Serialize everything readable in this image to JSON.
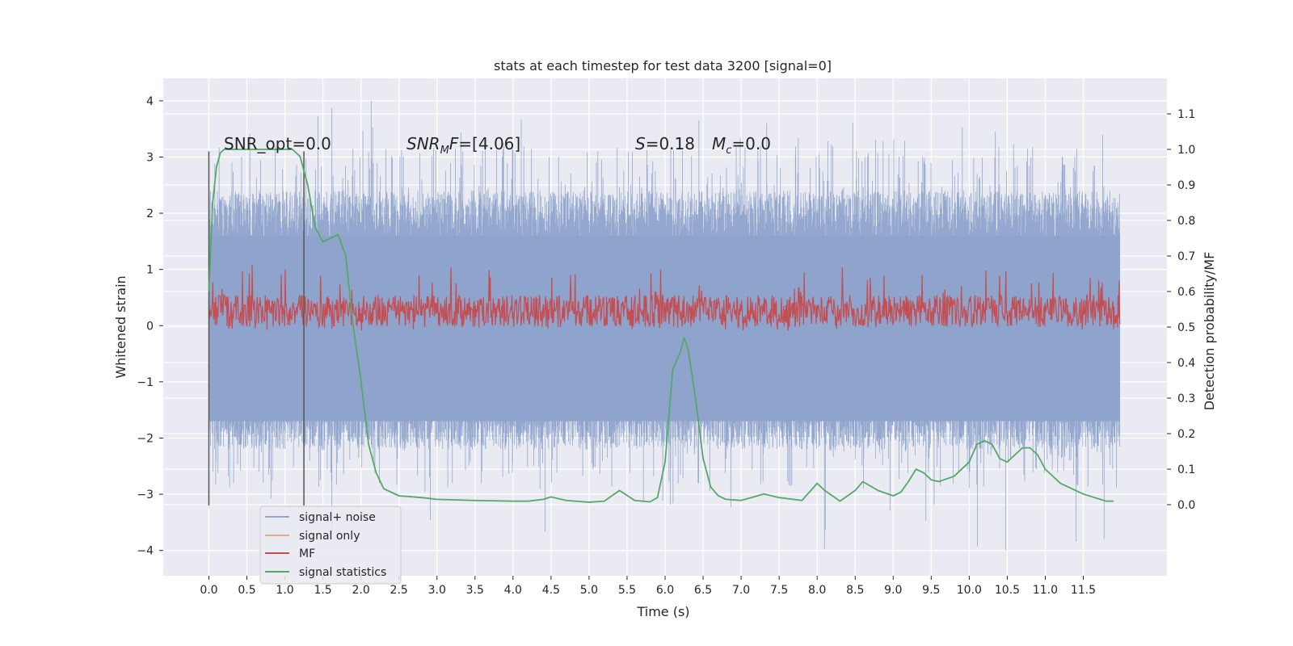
{
  "chart_data": {
    "type": "line",
    "title": "stats at each timestep for test data 3200 [signal=0]",
    "xlabel": "Time (s)",
    "ylabel": "Whitened strain",
    "y2label": "Detection probability/MF",
    "xlim": [
      -0.6,
      12.6
    ],
    "ylim": [
      -4.45,
      4.4
    ],
    "y2lim": [
      -0.2,
      1.2
    ],
    "x_ticks": [
      "0.0",
      "0.5",
      "1.0",
      "1.5",
      "2.0",
      "2.5",
      "3.0",
      "3.5",
      "4.0",
      "4.5",
      "5.0",
      "5.5",
      "6.0",
      "6.5",
      "7.0",
      "7.5",
      "8.0",
      "8.5",
      "9.0",
      "9.5",
      "10.0",
      "10.5",
      "11.0",
      "11.5"
    ],
    "x_tick_values": [
      0,
      0.5,
      1,
      1.5,
      2,
      2.5,
      3,
      3.5,
      4,
      4.5,
      5,
      5.5,
      6,
      6.5,
      7,
      7.5,
      8,
      8.5,
      9,
      9.5,
      10,
      10.5,
      11,
      11.5
    ],
    "y_ticks": [
      "−4",
      "−3",
      "−2",
      "−1",
      "0",
      "1",
      "2",
      "3",
      "4"
    ],
    "y_tick_values": [
      -4,
      -3,
      -2,
      -1,
      0,
      1,
      2,
      3,
      4
    ],
    "y2_ticks": [
      "0.0",
      "0.1",
      "0.2",
      "0.3",
      "0.4",
      "0.5",
      "0.6",
      "0.7",
      "0.8",
      "0.9",
      "1.0",
      "1.1"
    ],
    "y2_tick_values": [
      0,
      0.1,
      0.2,
      0.3,
      0.4,
      0.5,
      0.6,
      0.7,
      0.8,
      0.9,
      1.0,
      1.1
    ],
    "grid": true,
    "legend_position": "lower-left",
    "annotations": {
      "snr_opt": "SNR_opt=0.0",
      "snr_mf_italic": "SNR",
      "snr_mf_sub": "M",
      "snr_mf_rest_italic": "F",
      "snr_mf_value": "=[4.06]",
      "s_italic": "S",
      "s_value": "=0.18",
      "mc_italic": "M",
      "mc_sub": "c",
      "mc_value": "=0.0"
    },
    "vertical_lines": [
      0.0,
      1.25
    ],
    "vertical_line_range": [
      -3.2,
      3.1
    ],
    "series": [
      {
        "name": "signal+ noise",
        "axis": "left",
        "color": "#8fa4cc",
        "kind": "noise",
        "t_range": [
          0.0,
          11.98
        ],
        "amplitude_typical": [
          -2.2,
          2.4
        ],
        "amplitude_extreme": [
          -4.1,
          4.0
        ]
      },
      {
        "name": "signal only",
        "axis": "left",
        "color": "#e8a98a",
        "kind": "flat",
        "values": []
      },
      {
        "name": "MF",
        "axis": "right",
        "color": "#c44e52",
        "kind": "band",
        "t_range": [
          0.0,
          11.98
        ],
        "band": [
          0.5,
          0.59
        ],
        "extreme": [
          0.49,
          0.68
        ]
      },
      {
        "name": "signal statistics",
        "axis": "right",
        "color": "#55a868",
        "kind": "line",
        "x": [
          0.0,
          0.05,
          0.1,
          0.15,
          0.2,
          0.3,
          0.5,
          0.8,
          1.0,
          1.1,
          1.2,
          1.3,
          1.4,
          1.5,
          1.6,
          1.7,
          1.8,
          1.9,
          2.0,
          2.1,
          2.2,
          2.3,
          2.5,
          2.8,
          3.0,
          3.5,
          4.0,
          4.2,
          4.4,
          4.5,
          4.7,
          5.0,
          5.2,
          5.4,
          5.6,
          5.8,
          5.9,
          6.0,
          6.1,
          6.2,
          6.25,
          6.3,
          6.4,
          6.5,
          6.6,
          6.7,
          6.8,
          7.0,
          7.3,
          7.5,
          7.8,
          8.0,
          8.1,
          8.3,
          8.5,
          8.6,
          8.8,
          9.0,
          9.1,
          9.2,
          9.3,
          9.4,
          9.5,
          9.6,
          9.8,
          10.0,
          10.1,
          10.2,
          10.3,
          10.4,
          10.5,
          10.6,
          10.7,
          10.8,
          10.9,
          11.0,
          11.2,
          11.5,
          11.8,
          11.9
        ],
        "values": [
          0.6,
          0.85,
          0.95,
          0.99,
          1.0,
          1.0,
          1.0,
          1.0,
          1.0,
          1.0,
          0.98,
          0.9,
          0.78,
          0.74,
          0.75,
          0.76,
          0.7,
          0.5,
          0.35,
          0.17,
          0.09,
          0.045,
          0.025,
          0.02,
          0.015,
          0.012,
          0.01,
          0.01,
          0.015,
          0.022,
          0.012,
          0.007,
          0.01,
          0.04,
          0.012,
          0.008,
          0.02,
          0.12,
          0.38,
          0.43,
          0.47,
          0.44,
          0.3,
          0.13,
          0.05,
          0.025,
          0.015,
          0.012,
          0.03,
          0.02,
          0.012,
          0.06,
          0.04,
          0.01,
          0.04,
          0.065,
          0.04,
          0.025,
          0.035,
          0.065,
          0.1,
          0.09,
          0.07,
          0.065,
          0.08,
          0.12,
          0.17,
          0.18,
          0.17,
          0.13,
          0.12,
          0.14,
          0.16,
          0.16,
          0.14,
          0.1,
          0.06,
          0.03,
          0.01,
          0.01
        ]
      }
    ]
  }
}
